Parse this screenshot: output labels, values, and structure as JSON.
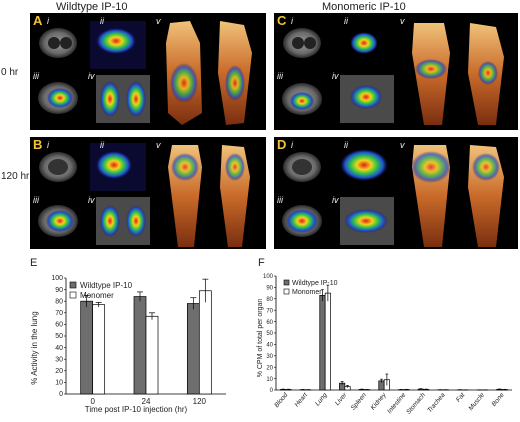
{
  "figure": {
    "col_titles": [
      "Wildtype IP-10",
      "Monomeric IP-10"
    ],
    "row_titles": [
      "0 hr",
      "120 hr"
    ],
    "panel_letters": [
      "A",
      "B",
      "C",
      "D"
    ],
    "sub_labels": [
      "i",
      "ii",
      "iii",
      "iv",
      "v"
    ]
  },
  "panel_e": {
    "letter": "E",
    "xlabel": "Time post IP-10 injection (hr)",
    "ylabel": "% Activity in the lung",
    "legend": [
      "Wildtype IP-10",
      "Monomer"
    ]
  },
  "panel_f": {
    "letter": "F",
    "ylabel": "% CPM of total per organ",
    "legend": [
      "Wildtype IP-10",
      "Monomer"
    ]
  },
  "colors": {
    "wildtype": "#6e6e6e",
    "monomer": "#ffffff",
    "panel_bg": "#000000",
    "label": "#f2c23a"
  },
  "chart_data": [
    {
      "type": "bar",
      "categories": [
        "0",
        "24",
        "120"
      ],
      "series": [
        {
          "name": "Wildtype IP-10",
          "values": [
            80,
            84,
            78
          ],
          "errors": [
            5,
            4,
            5
          ]
        },
        {
          "name": "Monomer",
          "values": [
            77,
            67,
            89
          ],
          "errors": [
            2,
            3,
            10
          ]
        }
      ],
      "xlabel": "Time post IP-10 injection (hr)",
      "ylabel": "% Activity in the lung",
      "ylim": [
        0,
        100
      ],
      "yticks": [
        0,
        10,
        20,
        30,
        40,
        50,
        60,
        70,
        80,
        90,
        100
      ],
      "legend_position": "top-left"
    },
    {
      "type": "bar",
      "categories": [
        "Blood",
        "Heart",
        "Lung",
        "Liver",
        "Spleen",
        "Kidney",
        "Intestine",
        "Stomach",
        "Trachea",
        "Fat",
        "Muscle",
        "Bone"
      ],
      "series": [
        {
          "name": "Wildtype IP-10",
          "values": [
            0.5,
            0.3,
            83,
            6,
            0.5,
            8,
            0.3,
            0.8,
            0.2,
            0.2,
            0.1,
            0.6
          ],
          "errors": [
            0.3,
            0.2,
            5,
            1.5,
            0.3,
            1.5,
            0.2,
            0.4,
            0.1,
            0.1,
            0.1,
            0.3
          ]
        },
        {
          "name": "Monomer",
          "values": [
            0.4,
            0.2,
            85,
            3,
            0.3,
            9,
            0.4,
            0.5,
            0.2,
            0.1,
            0.1,
            0.4
          ],
          "errors": [
            0.3,
            0.2,
            7,
            1,
            0.2,
            5,
            0.2,
            0.3,
            0.1,
            0.1,
            0.1,
            0.2
          ]
        }
      ],
      "ylabel": "% CPM of total per organ",
      "ylim": [
        0,
        100
      ],
      "yticks": [
        0,
        10,
        20,
        30,
        40,
        50,
        60,
        70,
        80,
        90,
        100
      ],
      "legend_position": "top-left"
    }
  ]
}
